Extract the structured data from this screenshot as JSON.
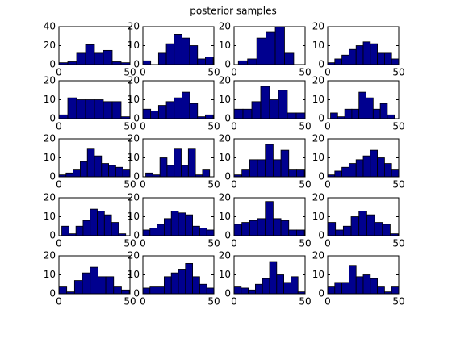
{
  "title": "posterior samples",
  "chart_data": [
    {
      "type": "histogram",
      "bins": [
        0,
        6.25,
        12.5,
        18.75,
        25,
        31.25,
        37.5,
        43.75,
        50
      ],
      "counts": [
        2,
        3,
        12,
        21,
        12,
        15,
        3,
        2
      ],
      "xlim": [
        0,
        50
      ],
      "ylim": [
        0,
        40
      ],
      "xticks": [
        0,
        50
      ],
      "yticks": [
        0,
        20,
        40
      ],
      "color": "#00008f"
    },
    {
      "type": "histogram",
      "bins": [
        0,
        5.5,
        11,
        16.5,
        22,
        27.5,
        33,
        38.5,
        44,
        49.5
      ],
      "counts": [
        2,
        0,
        6,
        11,
        16,
        14,
        10,
        3,
        4
      ],
      "xlim": [
        0,
        50
      ],
      "ylim": [
        0,
        20
      ],
      "xticks": [
        0,
        50
      ],
      "yticks": [
        0,
        10,
        20
      ],
      "color": "#00008f"
    },
    {
      "type": "histogram",
      "bins": [
        3,
        9.5,
        16,
        22.5,
        29,
        35.5,
        42
      ],
      "counts": [
        2,
        3,
        14,
        17,
        20,
        6
      ],
      "xlim": [
        0,
        50
      ],
      "ylim": [
        0,
        20
      ],
      "xticks": [
        0,
        50
      ],
      "yticks": [
        0,
        10,
        20
      ],
      "color": "#00008f"
    },
    {
      "type": "histogram",
      "bins": [
        0,
        5,
        10,
        15,
        20,
        25,
        30,
        35,
        40,
        45,
        50
      ],
      "counts": [
        1,
        3,
        5,
        8,
        10,
        12,
        11,
        6,
        6,
        3
      ],
      "xlim": [
        0,
        50
      ],
      "ylim": [
        0,
        20
      ],
      "xticks": [
        0,
        50
      ],
      "yticks": [
        0,
        10,
        20
      ],
      "color": "#00008f"
    },
    {
      "type": "histogram",
      "bins": [
        0,
        6.25,
        12.5,
        18.75,
        25,
        31.25,
        37.5,
        43.75,
        50
      ],
      "counts": [
        2,
        11,
        10,
        10,
        10,
        9,
        9,
        1
      ],
      "xlim": [
        0,
        50
      ],
      "ylim": [
        0,
        20
      ],
      "xticks": [
        0,
        50
      ],
      "yticks": [
        0,
        10,
        20
      ],
      "color": "#00008f"
    },
    {
      "type": "histogram",
      "bins": [
        0,
        5.5,
        11,
        16.5,
        22,
        27.5,
        33,
        38.5,
        44,
        49.5
      ],
      "counts": [
        5,
        4,
        7,
        9,
        11,
        14,
        8,
        1,
        2
      ],
      "xlim": [
        0,
        50
      ],
      "ylim": [
        0,
        20
      ],
      "xticks": [
        0,
        50
      ],
      "yticks": [
        0,
        10,
        20
      ],
      "color": "#00008f"
    },
    {
      "type": "histogram",
      "bins": [
        0,
        6.25,
        12.5,
        18.75,
        25,
        31.25,
        37.5,
        43.75,
        50
      ],
      "counts": [
        5,
        5,
        9,
        17,
        10,
        15,
        3,
        3
      ],
      "xlim": [
        0,
        50
      ],
      "ylim": [
        0,
        20
      ],
      "xticks": [
        0,
        50
      ],
      "yticks": [
        0,
        10,
        20
      ],
      "color": "#00008f"
    },
    {
      "type": "histogram",
      "bins": [
        2,
        7,
        12,
        17,
        22,
        27,
        32,
        37,
        42,
        47
      ],
      "counts": [
        3,
        1,
        5,
        5,
        14,
        11,
        5,
        8,
        2
      ],
      "xlim": [
        0,
        50
      ],
      "ylim": [
        0,
        20
      ],
      "xticks": [
        0,
        50
      ],
      "yticks": [
        0,
        10,
        20
      ],
      "color": "#00008f"
    },
    {
      "type": "histogram",
      "bins": [
        0,
        5,
        10,
        15,
        20,
        25,
        30,
        35,
        40,
        45,
        50
      ],
      "counts": [
        1,
        2,
        4,
        8,
        15,
        11,
        7,
        6,
        5,
        4
      ],
      "xlim": [
        0,
        50
      ],
      "ylim": [
        0,
        20
      ],
      "xticks": [
        0,
        50
      ],
      "yticks": [
        0,
        10,
        20
      ],
      "color": "#00008f"
    },
    {
      "type": "histogram",
      "bins": [
        2,
        7,
        12,
        17,
        22,
        27,
        32,
        37,
        42,
        47
      ],
      "counts": [
        2,
        1,
        10,
        6,
        15,
        6,
        15,
        1,
        4
      ],
      "xlim": [
        0,
        50
      ],
      "ylim": [
        0,
        20
      ],
      "xticks": [
        0,
        50
      ],
      "yticks": [
        0,
        10,
        20
      ],
      "color": "#00008f"
    },
    {
      "type": "histogram",
      "bins": [
        0,
        5.5,
        11,
        16.5,
        22,
        27.5,
        33,
        38.5,
        44,
        49.5
      ],
      "counts": [
        1,
        4,
        9,
        9,
        17,
        9,
        14,
        4,
        4
      ],
      "xlim": [
        0,
        50
      ],
      "ylim": [
        0,
        20
      ],
      "xticks": [
        0,
        50
      ],
      "yticks": [
        0,
        10,
        20
      ],
      "color": "#00008f"
    },
    {
      "type": "histogram",
      "bins": [
        0,
        5,
        10,
        15,
        20,
        25,
        30,
        35,
        40,
        45,
        50
      ],
      "counts": [
        1,
        3,
        5,
        7,
        9,
        11,
        14,
        10,
        7,
        4
      ],
      "xlim": [
        0,
        50
      ],
      "ylim": [
        0,
        20
      ],
      "xticks": [
        0,
        50
      ],
      "yticks": [
        0,
        10,
        20
      ],
      "color": "#00008f"
    },
    {
      "type": "histogram",
      "bins": [
        2,
        7,
        12,
        17,
        22,
        27,
        32,
        37,
        42,
        47
      ],
      "counts": [
        5,
        1,
        5,
        8,
        14,
        13,
        11,
        7,
        1
      ],
      "xlim": [
        0,
        50
      ],
      "ylim": [
        0,
        20
      ],
      "xticks": [
        0,
        50
      ],
      "yticks": [
        0,
        10,
        20
      ],
      "color": "#00008f"
    },
    {
      "type": "histogram",
      "bins": [
        0,
        5,
        10,
        15,
        20,
        25,
        30,
        35,
        40,
        45,
        50
      ],
      "counts": [
        3,
        4,
        6,
        9,
        13,
        12,
        11,
        5,
        4,
        3
      ],
      "xlim": [
        0,
        50
      ],
      "ylim": [
        0,
        20
      ],
      "xticks": [
        0,
        50
      ],
      "yticks": [
        0,
        10,
        20
      ],
      "color": "#00008f"
    },
    {
      "type": "histogram",
      "bins": [
        0,
        5.5,
        11,
        16.5,
        22,
        27.5,
        33,
        38.5,
        44,
        49.5
      ],
      "counts": [
        6,
        7,
        8,
        9,
        18,
        9,
        8,
        3,
        3
      ],
      "xlim": [
        0,
        50
      ],
      "ylim": [
        0,
        20
      ],
      "xticks": [
        0,
        50
      ],
      "yticks": [
        0,
        10,
        20
      ],
      "color": "#00008f"
    },
    {
      "type": "histogram",
      "bins": [
        0,
        5.5,
        11,
        16.5,
        22,
        27.5,
        33,
        38.5,
        44,
        49.5
      ],
      "counts": [
        7,
        3,
        5,
        10,
        13,
        11,
        7,
        6,
        1
      ],
      "xlim": [
        0,
        50
      ],
      "ylim": [
        0,
        20
      ],
      "xticks": [
        0,
        50
      ],
      "yticks": [
        0,
        10,
        20
      ],
      "color": "#00008f"
    },
    {
      "type": "histogram",
      "bins": [
        0,
        5.5,
        11,
        16.5,
        22,
        27.5,
        33,
        38.5,
        44,
        49.5
      ],
      "counts": [
        4,
        1,
        7,
        11,
        14,
        9,
        9,
        4,
        2
      ],
      "xlim": [
        0,
        50
      ],
      "ylim": [
        0,
        20
      ],
      "xticks": [
        0,
        50
      ],
      "yticks": [
        0,
        10,
        20
      ],
      "color": "#00008f"
    },
    {
      "type": "histogram",
      "bins": [
        0,
        5,
        10,
        15,
        20,
        25,
        30,
        35,
        40,
        45,
        50
      ],
      "counts": [
        3,
        4,
        4,
        9,
        11,
        13,
        16,
        9,
        5,
        3
      ],
      "xlim": [
        0,
        50
      ],
      "ylim": [
        0,
        20
      ],
      "xticks": [
        0,
        50
      ],
      "yticks": [
        0,
        10,
        20
      ],
      "color": "#00008f"
    },
    {
      "type": "histogram",
      "bins": [
        0,
        5,
        10,
        15,
        20,
        25,
        30,
        35,
        40,
        45,
        50
      ],
      "counts": [
        4,
        3,
        2,
        5,
        8,
        17,
        10,
        6,
        9,
        1
      ],
      "xlim": [
        0,
        50
      ],
      "ylim": [
        0,
        20
      ],
      "xticks": [
        0,
        50
      ],
      "yticks": [
        0,
        10,
        20
      ],
      "color": "#00008f"
    },
    {
      "type": "histogram",
      "bins": [
        0,
        5,
        10,
        15,
        20,
        25,
        30,
        35,
        40,
        45,
        50
      ],
      "counts": [
        4,
        6,
        6,
        15,
        9,
        10,
        8,
        4,
        1,
        4
      ],
      "xlim": [
        0,
        50
      ],
      "ylim": [
        0,
        20
      ],
      "xticks": [
        0,
        50
      ],
      "yticks": [
        0,
        10,
        20
      ],
      "color": "#00008f"
    }
  ]
}
